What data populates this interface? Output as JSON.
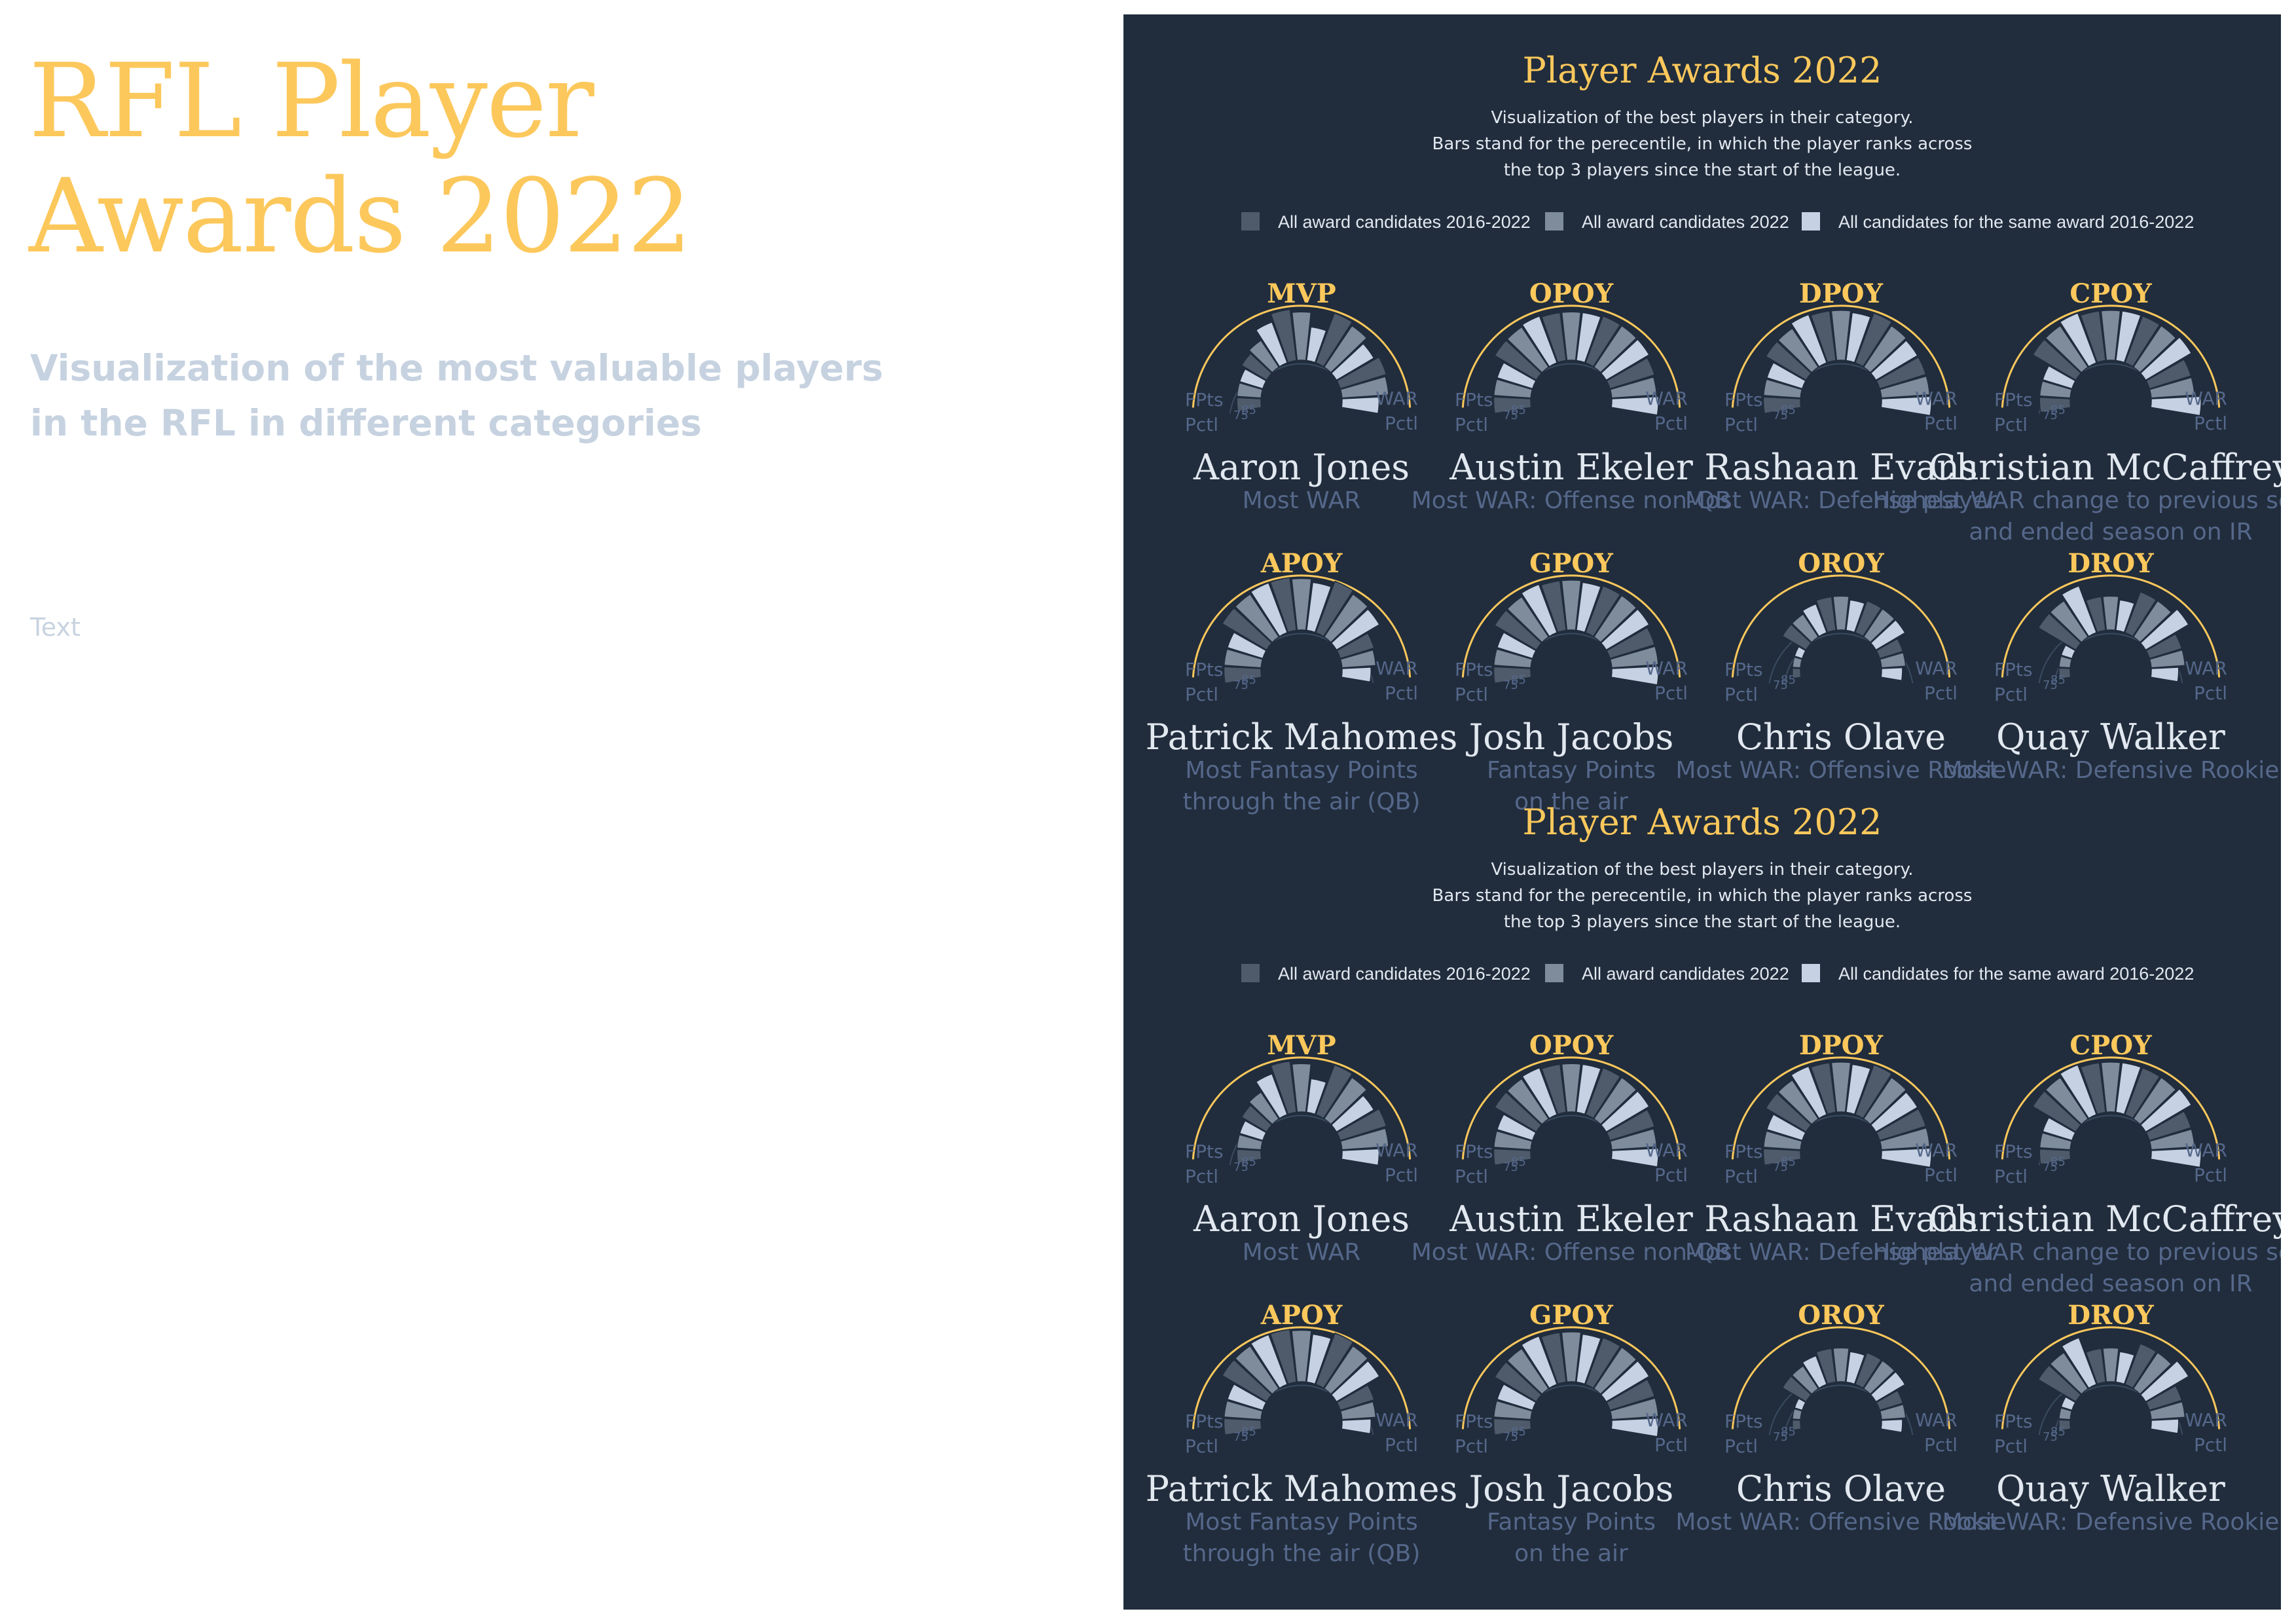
{
  "page": {
    "title": "RFL Player\nAwards 2022",
    "subtitle": "Visualization of the most valuable players\nin the RFL in different categories",
    "text": "Text"
  },
  "colors": {
    "panel_bg": "#212d3c",
    "gold": "#fcc85c",
    "all_candidates_2016_2022": "#4f5b6b",
    "all_candidates_2022": "#7f8c9c",
    "same_award_2016_2022": "#c6d2e3",
    "caption": "#55678a",
    "name": "#e2e8f0",
    "note": "#e2e8f0"
  },
  "chart_data": [
    {
      "type": "radial-bar",
      "title": "Player Awards 2022",
      "note_lines": [
        "Visualization of the best players in their category.",
        "Bars stand for the perecentile, in which the player ranks across",
        "the top 3 players since the start of the league."
      ],
      "legend": [
        {
          "label": "All award candidates 2016-2022",
          "color_key": "all_candidates_2016_2022"
        },
        {
          "label": "All award candidates 2022",
          "color_key": "all_candidates_2022"
        },
        {
          "label": "All candidates for the same award 2016-2022",
          "color_key": "same_award_2016_2022"
        }
      ],
      "axis_left_label": [
        "FPts",
        "Pctl"
      ],
      "axis_right_label": [
        "WAR",
        "Pctl"
      ],
      "tick_labels": [
        "75",
        "85"
      ],
      "comparison_groups": [
        "All award candidates 2016-2022",
        "All award candidates 2022",
        "All candidates for the same award 2016-2022"
      ],
      "value_unit": "percentile",
      "awards": [
        {
          "award": "MVP",
          "player": "Aaron Jones",
          "caption": [
            "Most WAR"
          ],
          "percentiles": [
            [
              80,
              80,
              80
            ],
            [
              83,
              85,
              92
            ],
            [
              97,
              95,
              86
            ],
            [
              98,
              96,
              92
            ],
            [
              95,
              94,
              88
            ]
          ]
        },
        {
          "award": "OPOY",
          "player": "Austin Ekeler",
          "caption": [
            "Most WAR: Offense non-QB"
          ],
          "percentiles": [
            [
              88,
              88,
              88
            ],
            [
              95,
              95,
              96
            ],
            [
              95,
              95,
              95
            ],
            [
              96,
              96,
              96
            ],
            [
              94,
              93,
              94
            ]
          ]
        },
        {
          "award": "DPOY",
          "player": "Rashaan Evans",
          "caption": [
            "Most WAR: Defense player"
          ],
          "percentiles": [
            [
              88,
              88,
              88
            ],
            [
              94,
              94,
              97
            ],
            [
              96,
              96,
              95
            ],
            [
              98,
              96,
              95
            ],
            [
              95,
              95,
              96
            ]
          ]
        },
        {
          "award": "CPOY",
          "player": "Christian McCaffrey",
          "caption": [
            "Highest WAR change to previous season",
            "and ended season on IR"
          ],
          "percentiles": [
            [
              84,
              84,
              84
            ],
            [
              96,
              96,
              98
            ],
            [
              96,
              96,
              96
            ],
            [
              96,
              96,
              98
            ],
            [
              92,
              92,
              96
            ]
          ]
        },
        {
          "award": "APOY",
          "player": "Patrick Mahomes",
          "caption": [
            "Most Fantasy Points",
            "through the air (QB)"
          ],
          "percentiles": [
            [
              88,
              88,
              88
            ],
            [
              97,
              97,
              98
            ],
            [
              98,
              97,
              95
            ],
            [
              99,
              97,
              96
            ],
            [
              87,
              86,
              83
            ]
          ]
        },
        {
          "award": "GPOY",
          "player": "Josh Jacobs",
          "caption": [
            "Fantasy Points",
            "on the air"
          ],
          "percentiles": [
            [
              88,
              88,
              88
            ],
            [
              95,
              95,
              97
            ],
            [
              96,
              96,
              95
            ],
            [
              96,
              96,
              96
            ],
            [
              94,
              94,
              94
            ]
          ]
        },
        {
          "award": "OROY",
          "player": "Chris Olave",
          "caption": [
            "Most WAR: Offensive Rookie"
          ],
          "percentiles": [
            [
              70,
              70,
              70
            ],
            [
              82,
              82,
              84
            ],
            [
              86,
              86,
              84
            ],
            [
              86,
              86,
              86
            ],
            [
              80,
              80,
              78
            ]
          ]
        },
        {
          "award": "DROY",
          "player": "Quay Walker",
          "caption": [
            "Most WAR: Defensive Rookie"
          ],
          "percentiles": [
            [
              72,
              72,
              72
            ],
            [
              92,
              92,
              96
            ],
            [
              86,
              86,
              84
            ],
            [
              92,
              92,
              96
            ],
            [
              86,
              86,
              82
            ]
          ]
        }
      ]
    },
    {
      "type": "radial-bar",
      "title": "Player Awards 2022",
      "note_lines": [
        "Visualization of the best players in their category.",
        "Bars stand for the perecentile, in which the player ranks across",
        "the top 3 players since the start of the league."
      ],
      "legend": [
        {
          "label": "All award candidates 2016-2022",
          "color_key": "all_candidates_2016_2022"
        },
        {
          "label": "All award candidates 2022",
          "color_key": "all_candidates_2022"
        },
        {
          "label": "All candidates for the same award 2016-2022",
          "color_key": "same_award_2016_2022"
        }
      ],
      "axis_left_label": [
        "FPts",
        "Pctl"
      ],
      "axis_right_label": [
        "WAR",
        "Pctl"
      ],
      "tick_labels": [
        "75",
        "85"
      ],
      "comparison_groups": [
        "All award candidates 2016-2022",
        "All award candidates 2022",
        "All candidates for the same award 2016-2022"
      ],
      "value_unit": "percentile",
      "awards": [
        {
          "award": "MVP",
          "player": "Aaron Jones",
          "caption": [
            "Most WAR"
          ],
          "percentiles": [
            [
              80,
              80,
              80
            ],
            [
              83,
              85,
              92
            ],
            [
              97,
              95,
              86
            ],
            [
              98,
              96,
              92
            ],
            [
              95,
              94,
              88
            ]
          ]
        },
        {
          "award": "OPOY",
          "player": "Austin Ekeler",
          "caption": [
            "Most WAR: Offense non-QB"
          ],
          "percentiles": [
            [
              88,
              88,
              88
            ],
            [
              95,
              95,
              96
            ],
            [
              95,
              95,
              95
            ],
            [
              96,
              96,
              96
            ],
            [
              94,
              93,
              94
            ]
          ]
        },
        {
          "award": "DPOY",
          "player": "Rashaan Evans",
          "caption": [
            "Most WAR: Defense player"
          ],
          "percentiles": [
            [
              88,
              88,
              88
            ],
            [
              94,
              94,
              97
            ],
            [
              96,
              96,
              95
            ],
            [
              98,
              96,
              95
            ],
            [
              95,
              95,
              96
            ]
          ]
        },
        {
          "award": "CPOY",
          "player": "Christian McCaffrey",
          "caption": [
            "Highest WAR change to previous season",
            "and ended season on IR"
          ],
          "percentiles": [
            [
              84,
              84,
              84
            ],
            [
              96,
              96,
              98
            ],
            [
              96,
              96,
              96
            ],
            [
              96,
              96,
              98
            ],
            [
              92,
              92,
              96
            ]
          ]
        },
        {
          "award": "APOY",
          "player": "Patrick Mahomes",
          "caption": [
            "Most Fantasy Points",
            "through the air (QB)"
          ],
          "percentiles": [
            [
              88,
              88,
              88
            ],
            [
              97,
              97,
              98
            ],
            [
              98,
              97,
              95
            ],
            [
              99,
              97,
              96
            ],
            [
              87,
              86,
              83
            ]
          ]
        },
        {
          "award": "GPOY",
          "player": "Josh Jacobs",
          "caption": [
            "Fantasy Points",
            "on the air"
          ],
          "percentiles": [
            [
              88,
              88,
              88
            ],
            [
              95,
              95,
              97
            ],
            [
              96,
              96,
              95
            ],
            [
              96,
              96,
              96
            ],
            [
              94,
              94,
              94
            ]
          ]
        },
        {
          "award": "OROY",
          "player": "Chris Olave",
          "caption": [
            "Most WAR: Offensive Rookie"
          ],
          "percentiles": [
            [
              70,
              70,
              70
            ],
            [
              82,
              82,
              84
            ],
            [
              86,
              86,
              84
            ],
            [
              86,
              86,
              86
            ],
            [
              80,
              80,
              78
            ]
          ]
        },
        {
          "award": "DROY",
          "player": "Quay Walker",
          "caption": [
            "Most WAR: Defensive Rookie"
          ],
          "percentiles": [
            [
              72,
              72,
              72
            ],
            [
              92,
              92,
              96
            ],
            [
              86,
              86,
              84
            ],
            [
              92,
              92,
              96
            ],
            [
              86,
              86,
              82
            ]
          ]
        }
      ]
    }
  ]
}
